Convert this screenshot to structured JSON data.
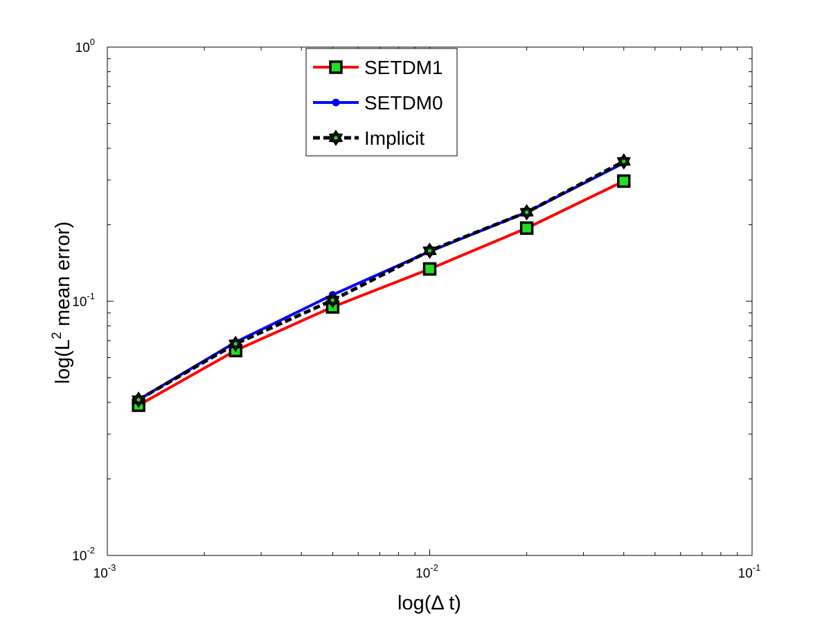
{
  "chart_data": {
    "type": "line",
    "xscale": "log",
    "yscale": "log",
    "xlim": [
      0.001,
      0.1
    ],
    "ylim": [
      0.01,
      1
    ],
    "xlabel": "log(Δ t)",
    "ylabel_parts": {
      "before": "log(L",
      "sup": "2",
      "after": " mean error)"
    },
    "x_ticks": [
      {
        "base": "10",
        "exp": "-3",
        "value": 0.001
      },
      {
        "base": "10",
        "exp": "-2",
        "value": 0.01
      },
      {
        "base": "10",
        "exp": "-1",
        "value": 0.1
      }
    ],
    "y_ticks": [
      {
        "base": "10",
        "exp": "-2",
        "value": 0.01
      },
      {
        "base": "10",
        "exp": "-1",
        "value": 0.1
      },
      {
        "base": "10",
        "exp": "0",
        "value": 1
      }
    ],
    "legend_position": "top-center",
    "grid": false,
    "x": [
      0.00125,
      0.0025,
      0.005,
      0.01,
      0.02,
      0.04
    ],
    "series": [
      {
        "name": "SETDM1",
        "color": "#ff0000",
        "marker": "square",
        "marker_fill": "#22dd22",
        "dashed": false,
        "values": [
          0.039,
          0.064,
          0.095,
          0.134,
          0.194,
          0.297
        ]
      },
      {
        "name": "SETDM0",
        "color": "#0000ff",
        "marker": "dot",
        "marker_fill": "#0000ff",
        "dashed": false,
        "values": [
          0.041,
          0.069,
          0.106,
          0.157,
          0.224,
          0.35
        ]
      },
      {
        "name": "Implicit",
        "color": "#000000",
        "marker": "hexagram",
        "marker_fill": "#22dd22",
        "dashed": true,
        "values": [
          0.041,
          0.068,
          0.101,
          0.158,
          0.224,
          0.355
        ]
      }
    ]
  }
}
